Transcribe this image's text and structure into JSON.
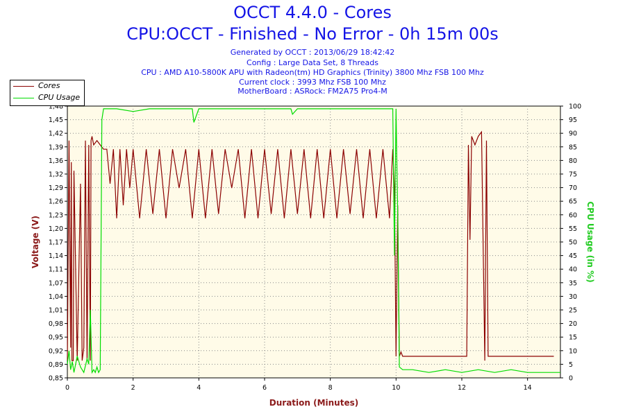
{
  "header": {
    "title": "OCCT 4.4.0 - Cores",
    "subtitle": "CPU:OCCT - Finished - No Error - 0h 15m 00s",
    "info_lines": [
      "Generated by OCCT : 2013/06/29 18:42:42",
      "Config : Large Data Set, 8 Threads",
      "CPU : AMD A10-5800K APU with Radeon(tm) HD Graphics (Trinity) 3800 Mhz FSB 100 Mhz",
      "Current clock : 3993 Mhz FSB 100 Mhz",
      "MotherBoard : ASRock: FM2A75 Pro4-M"
    ]
  },
  "legend": [
    {
      "name": "Cores",
      "color": "#8b0000"
    },
    {
      "name": "CPU Usage",
      "color": "#00dd00"
    }
  ],
  "colors": {
    "voltage_axis": "#8b1a1a",
    "usage_axis": "#22cc22",
    "plot_background": "#fffbe8",
    "title": "#1414e6"
  },
  "chart_data": {
    "type": "line",
    "grid": true,
    "legend_position": "top-left",
    "xlabel": "Duration (Minutes)",
    "ylabel_left": "Voltage (V)",
    "ylabel_right": "CPU Usage (in %)",
    "xlim": [
      0,
      15
    ],
    "ylim_left": [
      0.85,
      1.48
    ],
    "ylim_right": [
      0,
      100
    ],
    "x_ticks": [
      "0",
      "2",
      "4",
      "6",
      "8",
      "10",
      "12",
      "14"
    ],
    "y_left_ticks": [
      "0,85",
      "0,89",
      "0,92",
      "0,95",
      "0,98",
      "1,01",
      "1,04",
      "1,07",
      "1,11",
      "1,14",
      "1,17",
      "1,20",
      "1,23",
      "1,26",
      "1,29",
      "1,32",
      "1,36",
      "1,39",
      "1,42",
      "1,45",
      "1,48"
    ],
    "y_right_ticks": [
      "0",
      "5",
      "10",
      "15",
      "20",
      "25",
      "30",
      "35",
      "40",
      "45",
      "50",
      "55",
      "60",
      "65",
      "70",
      "75",
      "80",
      "85",
      "90",
      "95",
      "100"
    ],
    "series": [
      {
        "name": "Cores",
        "axis": "left",
        "x": [
          0,
          0.05,
          0.1,
          0.12,
          0.14,
          0.18,
          0.2,
          0.3,
          0.4,
          0.45,
          0.5,
          0.55,
          0.6,
          0.65,
          0.7,
          0.72,
          0.75,
          0.8,
          0.9,
          1.0,
          1.1,
          1.2,
          1.3,
          1.4,
          1.5,
          1.6,
          1.7,
          1.8,
          1.9,
          2.0,
          2.2,
          2.4,
          2.6,
          2.8,
          3.0,
          3.2,
          3.4,
          3.6,
          3.8,
          4.0,
          4.2,
          4.4,
          4.6,
          4.8,
          5.0,
          5.2,
          5.4,
          5.6,
          5.8,
          6.0,
          6.2,
          6.4,
          6.6,
          6.8,
          7.0,
          7.2,
          7.4,
          7.6,
          7.8,
          8.0,
          8.2,
          8.4,
          8.6,
          8.8,
          9.0,
          9.2,
          9.4,
          9.6,
          9.8,
          9.9,
          9.95,
          10.0,
          10.05,
          10.1,
          10.15,
          10.2,
          10.5,
          11.0,
          11.5,
          12.0,
          12.15,
          12.2,
          12.25,
          12.3,
          12.4,
          12.5,
          12.6,
          12.7,
          12.75,
          12.8,
          12.85,
          13.0,
          13.5,
          14.0,
          14.5,
          14.8
        ],
        "y": [
          0.89,
          1.4,
          0.92,
          1.35,
          0.89,
          0.89,
          1.33,
          0.89,
          1.3,
          0.89,
          0.92,
          1.4,
          0.89,
          1.39,
          0.89,
          1.4,
          1.41,
          1.39,
          1.4,
          1.39,
          1.38,
          1.38,
          1.3,
          1.38,
          1.22,
          1.38,
          1.25,
          1.38,
          1.29,
          1.38,
          1.22,
          1.38,
          1.23,
          1.38,
          1.22,
          1.38,
          1.29,
          1.38,
          1.22,
          1.38,
          1.22,
          1.38,
          1.23,
          1.38,
          1.29,
          1.38,
          1.22,
          1.38,
          1.22,
          1.38,
          1.23,
          1.38,
          1.22,
          1.38,
          1.23,
          1.38,
          1.22,
          1.38,
          1.22,
          1.38,
          1.22,
          1.38,
          1.23,
          1.38,
          1.22,
          1.38,
          1.22,
          1.38,
          1.22,
          1.38,
          1.29,
          0.9,
          1.25,
          0.9,
          0.91,
          0.9,
          0.9,
          0.9,
          0.9,
          0.9,
          0.9,
          1.39,
          1.17,
          1.41,
          1.39,
          1.41,
          1.42,
          0.89,
          1.4,
          0.9,
          0.9,
          0.9,
          0.9,
          0.9,
          0.9,
          0.9
        ]
      },
      {
        "name": "CPU Usage",
        "axis": "right",
        "x": [
          0,
          0.05,
          0.1,
          0.15,
          0.2,
          0.3,
          0.4,
          0.5,
          0.6,
          0.65,
          0.7,
          0.75,
          0.8,
          0.85,
          0.9,
          0.95,
          1.0,
          1.05,
          1.1,
          1.5,
          2.0,
          2.5,
          3.0,
          3.5,
          3.8,
          3.85,
          4.0,
          5.0,
          6.0,
          6.8,
          6.85,
          7.0,
          8.0,
          9.0,
          9.5,
          9.9,
          9.95,
          10.0,
          10.05,
          10.1,
          10.2,
          10.5,
          11.0,
          11.5,
          12.0,
          12.5,
          13.0,
          13.5,
          14.0,
          14.5,
          15.0
        ],
        "y": [
          5,
          10,
          3,
          6,
          2,
          8,
          4,
          2,
          7,
          5,
          25,
          2,
          3,
          2,
          4,
          2,
          3,
          95,
          99,
          99,
          98,
          99,
          99,
          99,
          99,
          94,
          99,
          99,
          99,
          99,
          97,
          99,
          99,
          99,
          99,
          99,
          45,
          99,
          60,
          4,
          3,
          3,
          2,
          3,
          2,
          3,
          2,
          3,
          2,
          2,
          2
        ]
      }
    ]
  }
}
